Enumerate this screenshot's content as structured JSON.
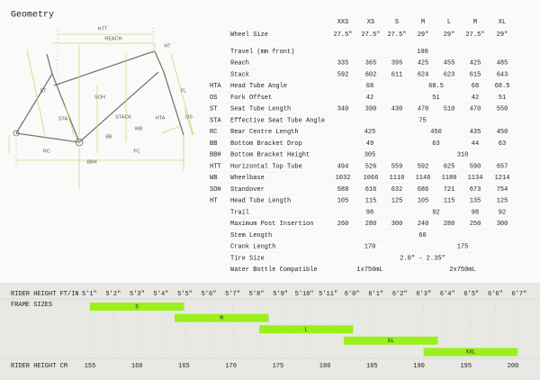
{
  "header": {
    "title": "Geometry"
  },
  "diagram": {
    "labels": [
      "HTT",
      "REACH",
      "HT",
      "ST",
      "SOH",
      "STACK",
      "HTA",
      "FL",
      "OS",
      "STA",
      "RC",
      "WB",
      "BB",
      "FC",
      "BBH"
    ]
  },
  "table": {
    "columns": [
      "XXS",
      "XS",
      "S",
      "M",
      "L",
      "M",
      "XL"
    ],
    "rows": [
      {
        "name": "Wheel Size",
        "cells": [
          "27.5\"",
          "27.5\"",
          "27.5\"",
          "29\"",
          "29\"",
          "27.5\"",
          "29\""
        ]
      },
      {
        "name": "Travel (mm front)",
        "cells": [
          {
            "text": "100",
            "span": 7
          }
        ]
      },
      {
        "name": "Reach",
        "cells": [
          "335",
          "365",
          "395",
          "425",
          "455",
          "425",
          "485"
        ]
      },
      {
        "name": "Stack",
        "cells": [
          "592",
          "602",
          "611",
          "624",
          "623",
          "615",
          "643"
        ]
      },
      {
        "abbr": "HTA",
        "name": "Head Tube Angle",
        "cells": [
          {
            "text": "68",
            "span": 3
          },
          {
            "text": "68.5",
            "span": 2
          },
          {
            "text": "68",
            "span": 1
          },
          {
            "text": "68.5",
            "span": 1
          }
        ]
      },
      {
        "abbr": "OS",
        "name": "Fork Offset",
        "cells": [
          {
            "text": "42",
            "span": 3
          },
          {
            "text": "51",
            "span": 2
          },
          {
            "text": "42",
            "span": 1
          },
          {
            "text": "51",
            "span": 1
          }
        ]
      },
      {
        "abbr": "ST",
        "name": "Seat Tube Length",
        "cells": [
          "340",
          "390",
          "430",
          "470",
          "510",
          "470",
          "550"
        ]
      },
      {
        "abbr": "STA",
        "name": "Effective Seat Tube Angle",
        "cells": [
          {
            "text": "75",
            "span": 7
          }
        ]
      },
      {
        "abbr": "RC",
        "name": "Rear Centre Length",
        "cells": [
          {
            "text": "425",
            "span": 3
          },
          {
            "text": "450",
            "span": 2
          },
          {
            "text": "435",
            "span": 1
          },
          {
            "text": "450",
            "span": 1
          }
        ]
      },
      {
        "abbr": "BB",
        "name": "Bottom Bracket Drop",
        "cells": [
          {
            "text": "49",
            "span": 3
          },
          {
            "text": "63",
            "span": 2
          },
          {
            "text": "44",
            "span": 1
          },
          {
            "text": "63",
            "span": 1
          }
        ]
      },
      {
        "abbr": "BBH",
        "name": "Bottom Bracket Height",
        "cells": [
          {
            "text": "305",
            "span": 3
          },
          {
            "text": "310",
            "span": 4
          }
        ]
      },
      {
        "abbr": "HTT",
        "name": "Horizontal Top Tube",
        "cells": [
          "494",
          "526",
          "559",
          "592",
          "625",
          "590",
          "657"
        ]
      },
      {
        "abbr": "WB",
        "name": "Wheelbase",
        "cells": [
          "1032",
          "1066",
          "1110",
          "1146",
          "1180",
          "1134",
          "1214"
        ]
      },
      {
        "abbr": "SOH",
        "name": "Standover",
        "cells": [
          "588",
          "616",
          "632",
          "686",
          "721",
          "673",
          "754"
        ]
      },
      {
        "abbr": "HT",
        "name": "Head Tube Length",
        "cells": [
          "105",
          "115",
          "125",
          "105",
          "115",
          "135",
          "125"
        ]
      },
      {
        "name": "Trail",
        "cells": [
          {
            "text": "98",
            "span": 3
          },
          {
            "text": "92",
            "span": 2
          },
          {
            "text": "98",
            "span": 1
          },
          {
            "text": "92",
            "span": 1
          }
        ]
      },
      {
        "name": "Maximum Post Insertion",
        "cells": [
          "260",
          "280",
          "300",
          "240",
          "280",
          "250",
          "300"
        ]
      },
      {
        "name": "Stem Length",
        "cells": [
          {
            "text": "60",
            "span": 7
          }
        ]
      },
      {
        "name": "Crank Length",
        "cells": [
          {
            "text": "170",
            "span": 3
          },
          {
            "text": "175",
            "span": 4
          }
        ]
      },
      {
        "name": "Tire Size",
        "cells": [
          {
            "text": "2.0\" - 2.35\"",
            "span": 7
          }
        ]
      },
      {
        "name": "Water Bottle Compatible",
        "cells": [
          {
            "text": "1x750mL",
            "span": 3
          },
          {
            "text": "2x750mL",
            "span": 4
          }
        ]
      }
    ]
  },
  "chart_data": {
    "type": "range-bar",
    "x2_label": "RIDER HEIGHT FT/IN",
    "y_label": "FRAME SIZES",
    "x_label": "RIDER HEIGHT CM",
    "xlim": [
      155,
      200
    ],
    "xticks": [
      155,
      160,
      165,
      170,
      175,
      180,
      185,
      190,
      195,
      200
    ],
    "x2ticks": [
      {
        "value": 154.94,
        "label": "5'1\""
      },
      {
        "value": 157.48,
        "label": "5'2\""
      },
      {
        "value": 160.02,
        "label": "5'3\""
      },
      {
        "value": 162.56,
        "label": "5'4\""
      },
      {
        "value": 165.1,
        "label": "5'5\""
      },
      {
        "value": 167.64,
        "label": "5'6\""
      },
      {
        "value": 170.18,
        "label": "5'7\""
      },
      {
        "value": 172.72,
        "label": "5'8\""
      },
      {
        "value": 175.26,
        "label": "5'9\""
      },
      {
        "value": 177.8,
        "label": "5'10\""
      },
      {
        "value": 180.34,
        "label": "5'11\""
      },
      {
        "value": 182.88,
        "label": "6'0\""
      },
      {
        "value": 185.42,
        "label": "6'1\""
      },
      {
        "value": 187.96,
        "label": "6'2\""
      },
      {
        "value": 190.5,
        "label": "6'3\""
      },
      {
        "value": 193.04,
        "label": "6'4\""
      },
      {
        "value": 195.58,
        "label": "6'5\""
      },
      {
        "value": 198.12,
        "label": "6'6\""
      },
      {
        "value": 200.66,
        "label": "6'7\""
      }
    ],
    "categories": [
      "S",
      "M",
      "L",
      "XL",
      "XXL"
    ],
    "starts": [
      155,
      164,
      173,
      182,
      190.5
    ],
    "ends": [
      165,
      174,
      183,
      192,
      200.5
    ],
    "color": "#9bf01c",
    "grid": true
  }
}
